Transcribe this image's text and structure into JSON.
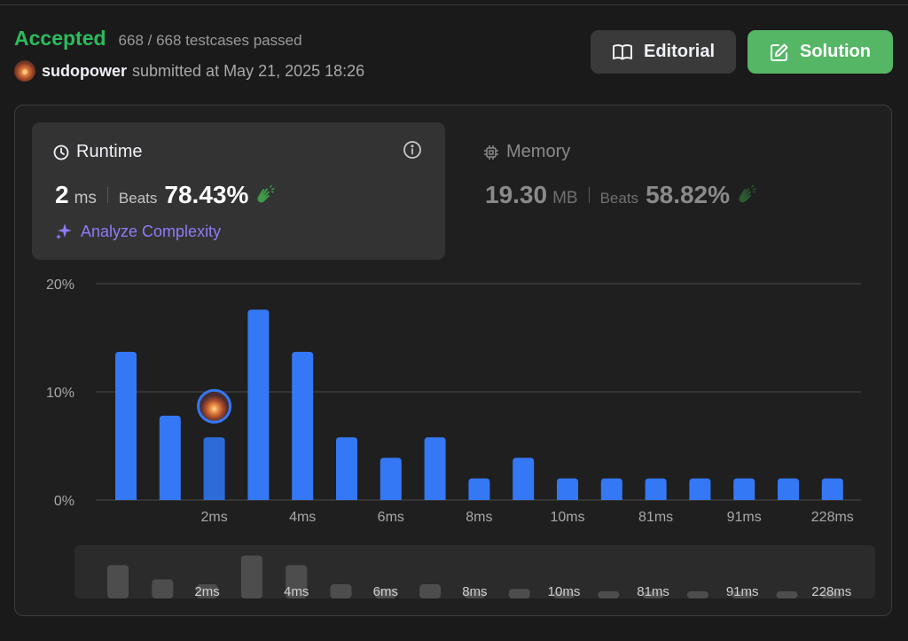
{
  "status": {
    "result": "Accepted",
    "testcases": "668 / 668 testcases passed",
    "username": "sudopower",
    "submitted_text": "submitted at May 21, 2025 18:26"
  },
  "buttons": {
    "editorial": "Editorial",
    "solution": "Solution"
  },
  "runtime": {
    "title": "Runtime",
    "value": "2",
    "unit": "ms",
    "beats_label": "Beats",
    "beats_value": "78.43%",
    "analyze": "Analyze Complexity"
  },
  "memory": {
    "title": "Memory",
    "value": "19.30",
    "unit": "MB",
    "beats_label": "Beats",
    "beats_value": "58.82%"
  },
  "colors": {
    "accepted": "#2cbb5d",
    "bar": "#3478f6",
    "bar_selected": "#2c6cd8",
    "solution_button": "#55b666",
    "analyze": "#8d7cf7"
  },
  "chart_data": {
    "type": "bar",
    "title": "",
    "xlabel": "",
    "ylabel": "",
    "y_ticks": [
      "20%",
      "10%",
      "0%"
    ],
    "ylim": [
      0,
      20
    ],
    "categories": [
      "",
      "",
      "2ms",
      "",
      "4ms",
      "",
      "6ms",
      "",
      "8ms",
      "",
      "10ms",
      "",
      "81ms",
      "",
      "91ms",
      "",
      "228ms"
    ],
    "values": [
      13.7,
      7.8,
      5.8,
      17.6,
      13.7,
      5.8,
      3.9,
      5.8,
      2.0,
      3.9,
      2.0,
      2.0,
      2.0,
      2.0,
      2.0,
      2.0,
      2.0
    ],
    "selected_index": 2,
    "grid": true
  }
}
